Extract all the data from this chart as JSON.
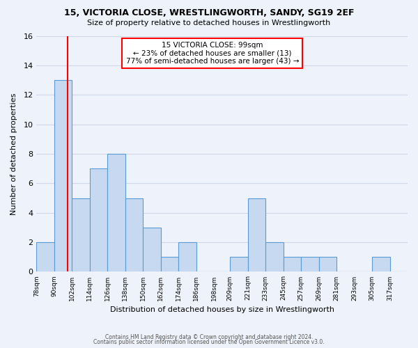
{
  "title": "15, VICTORIA CLOSE, WRESTLINGWORTH, SANDY, SG19 2EF",
  "subtitle": "Size of property relative to detached houses in Wrestlingworth",
  "xlabel": "Distribution of detached houses by size in Wrestlingworth",
  "ylabel": "Number of detached properties",
  "bar_edges": [
    78,
    90,
    102,
    114,
    126,
    138,
    150,
    162,
    174,
    186,
    198,
    209,
    221,
    233,
    245,
    257,
    269,
    281,
    293,
    305,
    317,
    329
  ],
  "bar_heights": [
    2,
    13,
    5,
    7,
    8,
    5,
    3,
    1,
    2,
    0,
    0,
    1,
    5,
    2,
    1,
    1,
    1,
    0,
    0,
    1,
    0
  ],
  "tick_labels": [
    "78sqm",
    "90sqm",
    "102sqm",
    "114sqm",
    "126sqm",
    "138sqm",
    "150sqm",
    "162sqm",
    "174sqm",
    "186sqm",
    "198sqm",
    "209sqm",
    "221sqm",
    "233sqm",
    "245sqm",
    "257sqm",
    "269sqm",
    "281sqm",
    "293sqm",
    "305sqm",
    "317sqm"
  ],
  "bar_color": "#c6d9f0",
  "bar_edge_color": "#5b9bd5",
  "property_line_x": 99,
  "property_line_color": "#ff0000",
  "annotation_text": "15 VICTORIA CLOSE: 99sqm\n← 23% of detached houses are smaller (13)\n77% of semi-detached houses are larger (43) →",
  "annotation_box_color": "#ffffff",
  "annotation_box_edge": "#ff0000",
  "ylim": [
    0,
    16
  ],
  "yticks": [
    0,
    2,
    4,
    6,
    8,
    10,
    12,
    14,
    16
  ],
  "grid_color": "#d0d8e8",
  "background_color": "#eef2fa",
  "footer_line1": "Contains HM Land Registry data © Crown copyright and database right 2024.",
  "footer_line2": "Contains public sector information licensed under the Open Government Licence v3.0."
}
